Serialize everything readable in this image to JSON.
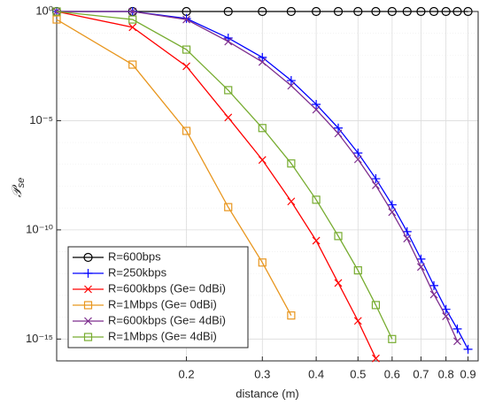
{
  "chart_data": {
    "type": "line",
    "xscale": "log",
    "yscale": "log",
    "grid": true,
    "minor_grid": true,
    "xlabel": "distance (m)",
    "ylabel": {
      "symbol": "𝒫",
      "subscript": "se"
    },
    "legend": "lower left",
    "xlim": [
      0.1,
      0.95
    ],
    "ylim": [
      1e-16,
      1
    ],
    "xticks": [
      0.2,
      0.3,
      0.4,
      0.5,
      0.6,
      0.7,
      0.8,
      0.9
    ],
    "yticks": [
      {
        "value": 1,
        "label": "10⁰"
      },
      {
        "value": 1e-05,
        "label": "10⁻⁵"
      },
      {
        "value": 1e-10,
        "label": "10⁻¹⁰"
      },
      {
        "value": 1e-15,
        "label": "10⁻¹⁵"
      }
    ],
    "x": [
      0.1,
      0.15,
      0.2,
      0.25,
      0.3,
      0.35,
      0.4,
      0.45,
      0.5,
      0.55,
      0.6,
      0.65,
      0.7,
      0.75,
      0.8,
      0.85,
      0.9
    ],
    "series": [
      {
        "name": "R=600bps",
        "color": "#000000",
        "marker": "o",
        "values": [
          1,
          1,
          1,
          1,
          1,
          1,
          1,
          1,
          1,
          1,
          1,
          1,
          1,
          1,
          1,
          1,
          1
        ]
      },
      {
        "name": "R=250kbps",
        "color": "#0000ff",
        "marker": "+",
        "values": [
          1,
          1,
          0.48,
          0.061,
          0.0079,
          0.00069,
          5.6e-05,
          4.6e-06,
          3.3e-07,
          2.2e-08,
          1.4e-09,
          8.3e-11,
          4.6e-12,
          2.8e-13,
          2.3e-14,
          2.9e-15,
          3.4e-16
        ]
      },
      {
        "name": "R=600kbps (Ge= 0dBi)",
        "color": "#ff0000",
        "marker": "x",
        "values": [
          1,
          0.19,
          0.0031,
          1.4e-05,
          1.6e-07,
          2e-09,
          3.2e-11,
          3.7e-13,
          6.8e-15,
          1.3e-16,
          null,
          null,
          null,
          null,
          null,
          null,
          null
        ]
      },
      {
        "name": "R=1Mbps (Ge= 0dBi)",
        "color": "#e8961e",
        "marker": "s",
        "values": [
          0.43,
          0.0037,
          3.4e-06,
          1.1e-09,
          3.2e-12,
          1.2e-14,
          null,
          null,
          null,
          null,
          null,
          null,
          null,
          null,
          null,
          null,
          null
        ]
      },
      {
        "name": "R=600kbps (Ge= 4dBi)",
        "color": "#7e2f8e",
        "marker": "x",
        "values": [
          1,
          1,
          0.43,
          0.042,
          0.0049,
          0.0004,
          3.2e-05,
          2.6e-06,
          1.7e-07,
          1.1e-08,
          6.5e-10,
          4e-11,
          2e-12,
          1.1e-13,
          1.1e-14,
          7.9e-16,
          null
        ]
      },
      {
        "name": "R=1Mbps (Ge= 4dBi)",
        "color": "#77ac30",
        "marker": "s",
        "values": [
          1,
          0.43,
          0.018,
          0.00025,
          4.6e-06,
          1.1e-07,
          2.4e-09,
          5.2e-11,
          1.4e-12,
          3.6e-14,
          1e-15,
          null,
          null,
          null,
          null,
          null,
          null
        ]
      }
    ]
  }
}
